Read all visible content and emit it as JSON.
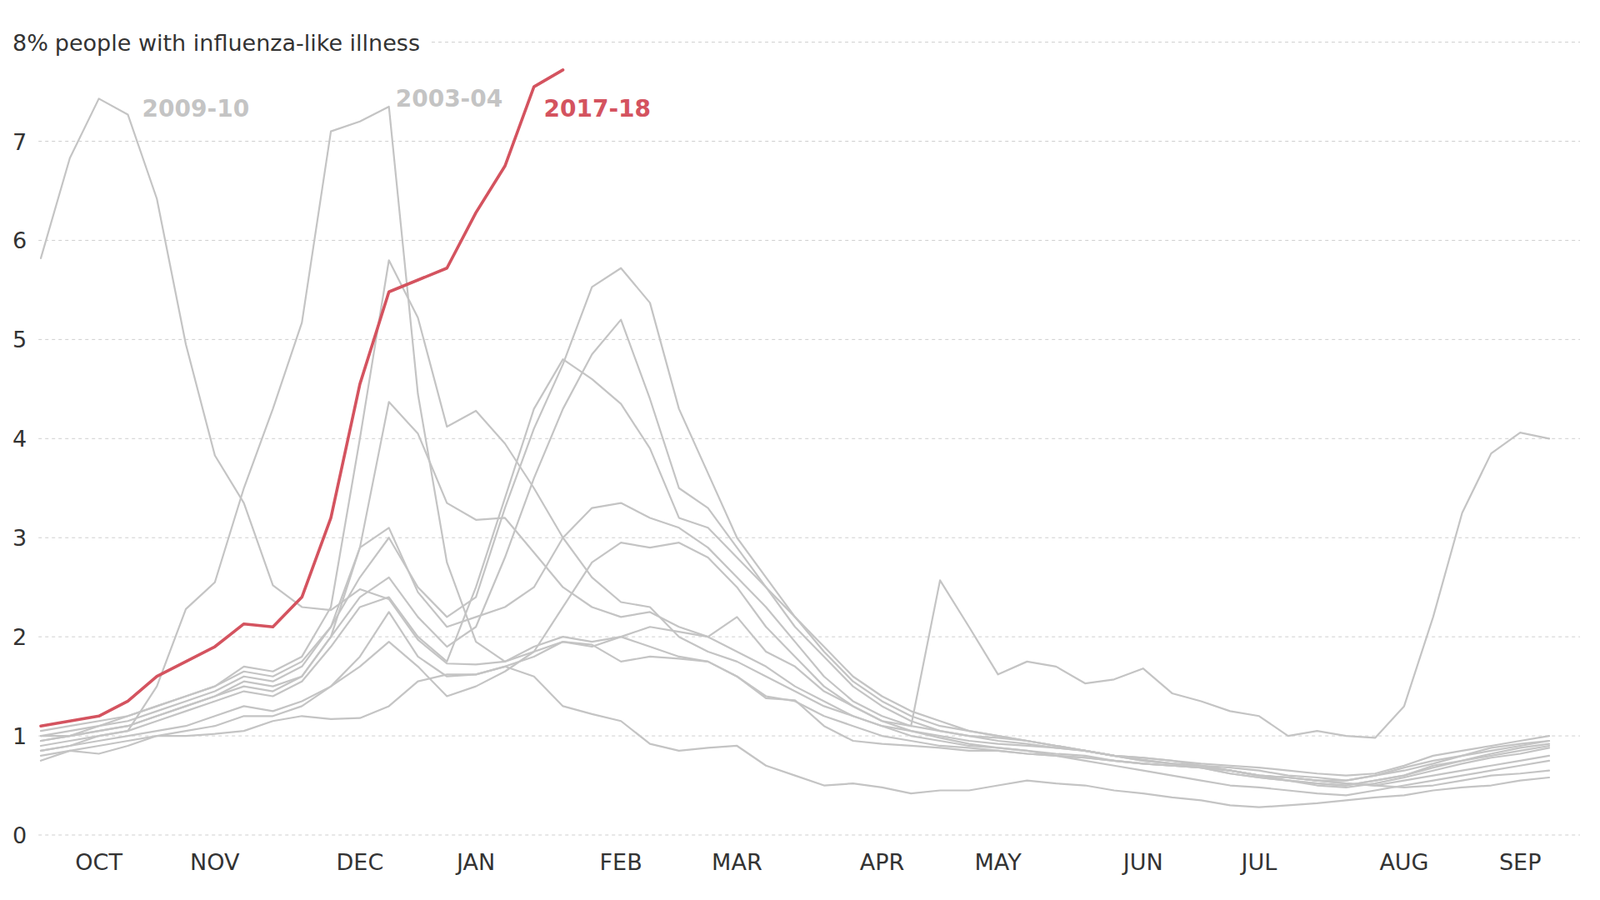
{
  "chart_data": {
    "type": "line",
    "title": "people with influenza-like illness",
    "categories": [
      null,
      null,
      "OCT",
      null,
      null,
      null,
      "NOV",
      null,
      null,
      null,
      null,
      "DEC",
      null,
      null,
      null,
      "JAN",
      null,
      null,
      null,
      null,
      "FEB",
      null,
      null,
      null,
      "MAR",
      null,
      null,
      null,
      null,
      "APR",
      null,
      null,
      null,
      "MAY",
      null,
      null,
      null,
      null,
      "JUN",
      null,
      null,
      null,
      "JUL",
      null,
      null,
      null,
      null,
      "AUG",
      null,
      null,
      null,
      "SEP",
      null
    ],
    "ylim": [
      0,
      8
    ],
    "yticks": [
      0,
      1,
      2,
      3,
      4,
      5,
      6,
      7,
      {
        "value": 8,
        "label": "8%"
      }
    ],
    "grid": true,
    "series": [
      {
        "color": "#c4c4c4",
        "values": [
          0.75,
          0.85,
          0.82,
          0.9,
          1.0,
          1.0,
          1.02,
          1.05,
          1.15,
          1.2,
          1.17,
          1.18,
          1.3,
          1.55,
          1.62,
          1.62,
          1.7,
          1.8,
          1.95,
          1.9,
          2.0,
          2.1,
          2.05,
          2.0,
          2.2,
          1.85,
          1.7,
          1.45,
          1.3,
          1.15,
          1.1,
          2.57,
          2.1,
          1.62,
          1.75,
          1.7,
          1.53,
          1.57,
          1.68,
          1.43,
          1.35,
          1.25,
          1.2,
          1.0,
          1.05,
          1.0,
          0.98,
          1.3,
          2.2,
          3.25,
          3.85,
          4.06,
          4.0
        ]
      },
      {
        "color": "#c4c4c4",
        "values": [
          1.0,
          1.05,
          1.1,
          1.2,
          1.3,
          1.4,
          1.5,
          1.7,
          1.65,
          1.8,
          2.3,
          4.0,
          5.8,
          5.22,
          4.12,
          4.28,
          3.95,
          3.5,
          3.0,
          2.6,
          2.35,
          2.3,
          2.0,
          1.85,
          1.75,
          1.6,
          1.45,
          1.3,
          1.2,
          1.1,
          1.05,
          1.0,
          0.95,
          0.92,
          0.9,
          0.88,
          0.85,
          0.8,
          0.78,
          0.75,
          0.72,
          0.7,
          0.68,
          0.65,
          0.62,
          0.6,
          0.62,
          0.7,
          0.8,
          0.85,
          0.9,
          0.95,
          1.0
        ]
      },
      {
        "color": "#c4c4c4",
        "values": [
          0.95,
          1.0,
          1.05,
          1.1,
          1.2,
          1.3,
          1.4,
          1.55,
          1.5,
          1.6,
          2.0,
          2.9,
          4.37,
          4.05,
          3.35,
          3.18,
          3.2,
          2.85,
          2.5,
          2.3,
          2.2,
          2.25,
          2.1,
          2.0,
          1.85,
          1.7,
          1.5,
          1.35,
          1.2,
          1.1,
          1.0,
          0.95,
          0.9,
          0.88,
          0.85,
          0.82,
          0.8,
          0.75,
          0.72,
          0.7,
          0.68,
          0.62,
          0.58,
          0.55,
          0.52,
          0.5,
          0.55,
          0.6,
          0.7,
          0.75,
          0.8,
          0.85,
          0.9
        ]
      },
      {
        "color": "#c4c4c4",
        "values": [
          1.0,
          1.0,
          1.1,
          1.15,
          1.25,
          1.35,
          1.45,
          1.6,
          1.55,
          1.7,
          2.1,
          2.9,
          3.1,
          2.45,
          2.1,
          2.2,
          2.3,
          2.5,
          3.0,
          3.3,
          3.35,
          3.2,
          3.1,
          2.9,
          2.6,
          2.3,
          1.95,
          1.6,
          1.35,
          1.2,
          1.1,
          1.05,
          1.0,
          0.98,
          0.95,
          0.9,
          0.85,
          0.8,
          0.75,
          0.72,
          0.7,
          0.68,
          0.65,
          0.6,
          0.58,
          0.55,
          0.6,
          0.68,
          0.75,
          0.8,
          0.85,
          0.9,
          0.95
        ]
      },
      {
        "color": "#c4c4c4",
        "values": [
          1.05,
          1.1,
          1.15,
          1.2,
          1.3,
          1.4,
          1.5,
          1.65,
          1.6,
          1.75,
          2.1,
          2.6,
          3.0,
          2.5,
          2.2,
          2.4,
          3.3,
          4.1,
          4.75,
          5.53,
          5.72,
          5.37,
          4.3,
          3.65,
          3.0,
          2.6,
          2.2,
          1.85,
          1.55,
          1.35,
          1.2,
          1.1,
          1.05,
          1.0,
          0.95,
          0.9,
          0.85,
          0.8,
          0.78,
          0.75,
          0.7,
          0.65,
          0.6,
          0.58,
          0.55,
          0.55,
          0.6,
          0.65,
          0.72,
          0.8,
          0.88,
          0.92,
          0.95
        ]
      },
      {
        "color": "#c4c4c4",
        "values": [
          0.95,
          1.0,
          1.05,
          1.1,
          1.2,
          1.3,
          1.4,
          1.5,
          1.45,
          1.6,
          2.0,
          2.4,
          2.6,
          2.2,
          1.9,
          2.1,
          2.8,
          3.6,
          4.3,
          4.85,
          5.2,
          4.4,
          3.5,
          3.3,
          2.9,
          2.5,
          2.1,
          1.8,
          1.5,
          1.3,
          1.15,
          1.05,
          1.0,
          0.95,
          0.92,
          0.88,
          0.85,
          0.8,
          0.75,
          0.72,
          0.7,
          0.65,
          0.6,
          0.55,
          0.52,
          0.5,
          0.55,
          0.6,
          0.68,
          0.75,
          0.82,
          0.88,
          0.92
        ]
      },
      {
        "color": "#c4c4c4",
        "values": [
          0.9,
          0.95,
          1.0,
          1.05,
          1.15,
          1.25,
          1.35,
          1.45,
          1.4,
          1.55,
          1.9,
          2.3,
          2.4,
          2.0,
          1.75,
          2.5,
          3.4,
          4.3,
          4.8,
          4.6,
          4.35,
          3.9,
          3.2,
          3.1,
          2.8,
          2.5,
          2.2,
          1.9,
          1.6,
          1.4,
          1.25,
          1.15,
          1.05,
          1.0,
          0.95,
          0.9,
          0.85,
          0.8,
          0.76,
          0.72,
          0.68,
          0.62,
          0.58,
          0.55,
          0.5,
          0.48,
          0.52,
          0.58,
          0.65,
          0.72,
          0.78,
          0.82,
          0.88
        ]
      },
      {
        "color": "#c4c4c4",
        "values": [
          0.8,
          0.85,
          0.9,
          0.95,
          1.0,
          1.05,
          1.1,
          1.2,
          1.2,
          1.3,
          1.5,
          1.7,
          1.95,
          1.7,
          1.4,
          1.5,
          1.65,
          1.85,
          2.3,
          2.75,
          2.95,
          2.9,
          2.95,
          2.8,
          2.5,
          2.1,
          1.8,
          1.5,
          1.3,
          1.15,
          1.05,
          0.98,
          0.92,
          0.88,
          0.85,
          0.8,
          0.75,
          0.7,
          0.65,
          0.6,
          0.55,
          0.5,
          0.48,
          0.45,
          0.42,
          0.4,
          0.45,
          0.5,
          0.55,
          0.6,
          0.65,
          0.7,
          0.75
        ]
      },
      {
        "color": "#c4c4c4",
        "values": [
          0.85,
          0.9,
          0.95,
          1.0,
          1.05,
          1.1,
          1.2,
          1.3,
          1.25,
          1.35,
          1.5,
          1.8,
          2.25,
          1.8,
          1.6,
          1.62,
          1.7,
          1.6,
          1.3,
          1.22,
          1.15,
          0.92,
          0.85,
          0.88,
          0.9,
          0.7,
          0.6,
          0.5,
          0.52,
          0.48,
          0.42,
          0.45,
          0.45,
          0.5,
          0.55,
          0.52,
          0.5,
          0.45,
          0.42,
          0.38,
          0.35,
          0.3,
          0.28,
          0.3,
          0.32,
          0.35,
          0.38,
          0.4,
          0.45,
          0.48,
          0.5,
          0.55,
          0.58
        ]
      },
      {
        "name": "2009-10",
        "color": "#c4c4c4",
        "values": [
          5.82,
          6.83,
          7.43,
          7.27,
          6.42,
          4.95,
          3.83,
          3.35,
          2.52,
          2.3,
          2.27,
          2.48,
          2.38,
          1.97,
          1.73,
          1.72,
          1.75,
          1.85,
          1.95,
          1.92,
          1.75,
          1.8,
          1.78,
          1.75,
          1.6,
          1.38,
          1.36,
          1.1,
          0.95,
          0.92,
          0.9,
          0.88,
          0.85,
          0.85,
          0.82,
          0.8,
          0.78,
          0.75,
          0.72,
          0.7,
          0.68,
          0.65,
          0.6,
          0.58,
          0.55,
          0.52,
          0.5,
          0.48,
          0.5,
          0.55,
          0.6,
          0.62,
          0.65
        ]
      },
      {
        "name": "2003-04",
        "color": "#c4c4c4",
        "values": [
          0.85,
          0.9,
          1.0,
          1.05,
          1.5,
          2.28,
          2.55,
          3.5,
          4.3,
          5.17,
          7.1,
          7.2,
          7.35,
          4.45,
          2.75,
          1.95,
          1.75,
          1.9,
          2.0,
          1.95,
          2.0,
          1.9,
          1.8,
          1.75,
          1.6,
          1.4,
          1.35,
          1.2,
          1.1,
          1.0,
          0.95,
          0.9,
          0.88,
          0.85,
          0.82,
          0.8,
          0.78,
          0.75,
          0.72,
          0.7,
          0.68,
          0.65,
          0.6,
          0.58,
          0.55,
          0.52,
          0.5,
          0.55,
          0.6,
          0.65,
          0.7,
          0.75,
          0.8
        ]
      },
      {
        "name": "2017-18",
        "color": "#d4535f",
        "values": [
          1.1,
          1.15,
          1.2,
          1.35,
          1.6,
          1.75,
          1.9,
          2.13,
          2.1,
          2.4,
          3.2,
          4.55,
          5.48,
          5.6,
          5.72,
          6.28,
          6.75,
          7.55,
          7.72,
          null,
          null,
          null,
          null,
          null,
          null,
          null,
          null,
          null,
          null,
          null,
          null,
          null,
          null,
          null,
          null,
          null,
          null,
          null,
          null,
          null,
          null,
          null,
          null,
          null,
          null,
          null,
          null,
          null,
          null,
          null,
          null,
          null,
          null
        ]
      }
    ]
  }
}
